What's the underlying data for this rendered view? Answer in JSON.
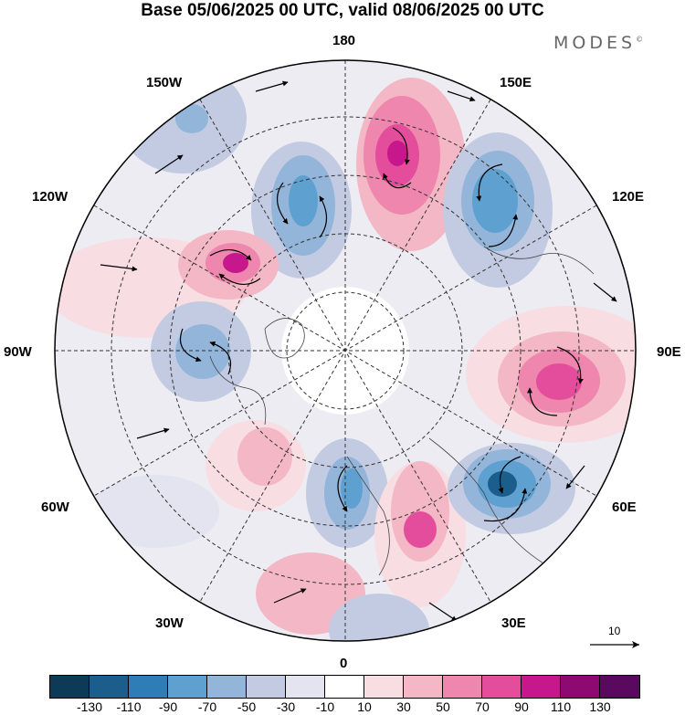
{
  "title": "Base 05/06/2025 00 UTC, valid 08/06/2025 00 UTC",
  "brand": "MODES",
  "brand_mark": "©",
  "longitude_labels": {
    "top": "180",
    "bottom": "0",
    "left": "90W",
    "right": "90E",
    "nw1": "150W",
    "nw2": "120W",
    "ne1": "150E",
    "ne2": "120E",
    "sw1": "60W",
    "sw2": "30W",
    "se1": "60E",
    "se2": "30E"
  },
  "reference_vector": {
    "label": "10"
  },
  "colorbar": {
    "colors": [
      "#0d3a57",
      "#1c5e8b",
      "#2f7db6",
      "#5ea1d0",
      "#93b5da",
      "#c3cbe2",
      "#e4e4f0",
      "#ffffff",
      "#f8dde2",
      "#f4b7c5",
      "#ee86ad",
      "#e44d9c",
      "#c7178c",
      "#8e0a72",
      "#5a0a5e"
    ],
    "ticks": [
      "-130",
      "-110",
      "-90",
      "-70",
      "-50",
      "-30",
      "-10",
      "10",
      "30",
      "50",
      "70",
      "90",
      "110",
      "130"
    ]
  }
}
